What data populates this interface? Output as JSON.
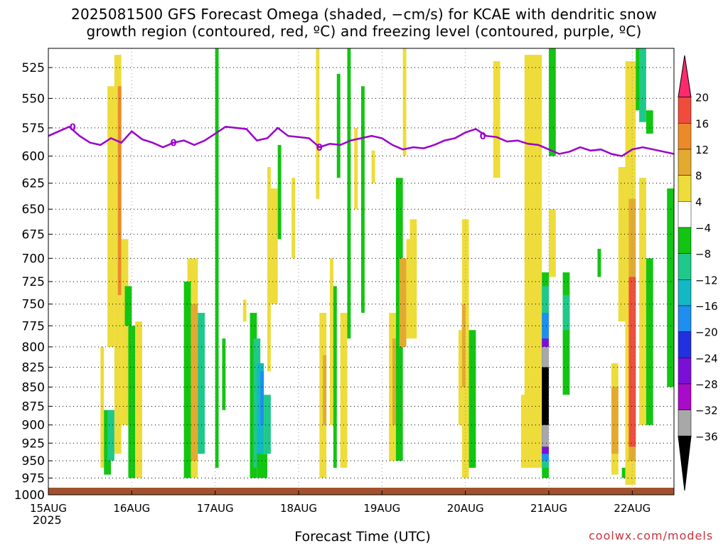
{
  "title": {
    "line1": "2025081500 GFS Forecast Omega (shaded, −cm/s) for KCAE with dendritic snow",
    "line2": "growth region (contoured, red, ºC) and freezing level (contoured, purple, ºC)"
  },
  "credit": "coolwx.com/models",
  "colors": {
    "freezing_line": "#9b00cc",
    "ground": "#a0522d",
    "grid": "#000000"
  },
  "chart_data": {
    "type": "heatmap",
    "xlabel": "Forecast Time (UTC)",
    "ylabel": "",
    "x_start_label": "15AUG",
    "x_start_year": "2025",
    "x_tick_labels": [
      "15AUG",
      "16AUG",
      "17AUG",
      "18AUG",
      "19AUG",
      "20AUG",
      "21AUG",
      "22AUG"
    ],
    "x_range_hours": [
      0,
      180
    ],
    "y_axis": "pressure (hPa), decreasing upward",
    "y_tick_labels": [
      "525",
      "550",
      "575",
      "600",
      "625",
      "650",
      "675",
      "700",
      "725",
      "750",
      "775",
      "800",
      "825",
      "850",
      "875",
      "900",
      "925",
      "950",
      "975",
      "1000"
    ],
    "y_range_hpa": [
      1000,
      510
    ],
    "colorbar": {
      "tick_labels": [
        "20",
        "16",
        "12",
        "8",
        "4",
        "−4",
        "−8",
        "−12",
        "−16",
        "−20",
        "−24",
        "−28",
        "−32",
        "−36"
      ],
      "levels": [
        24,
        20,
        16,
        12,
        8,
        4,
        -4,
        -8,
        -12,
        -16,
        -20,
        -24,
        -28,
        -32,
        -36,
        -40
      ],
      "colors": [
        "#ff2a6e",
        "#f04c3c",
        "#ec8a2a",
        "#e3aa30",
        "#eedc3a",
        "#ffffff",
        "#12c512",
        "#1ec98a",
        "#12b8c4",
        "#1e8ef0",
        "#2230e0",
        "#7a10d8",
        "#a80cc8",
        "#a8a8a8",
        "#000000"
      ]
    },
    "freezing_level_label": "0",
    "freezing_level_label_hours": [
      7,
      36,
      78,
      125
    ],
    "freezing_level": [
      {
        "h": 0,
        "p": 582
      },
      {
        "h": 3,
        "p": 578
      },
      {
        "h": 6,
        "p": 574
      },
      {
        "h": 9,
        "p": 582
      },
      {
        "h": 12,
        "p": 588
      },
      {
        "h": 15,
        "p": 590
      },
      {
        "h": 18,
        "p": 584
      },
      {
        "h": 21,
        "p": 588
      },
      {
        "h": 24,
        "p": 578
      },
      {
        "h": 27,
        "p": 585
      },
      {
        "h": 30,
        "p": 588
      },
      {
        "h": 33,
        "p": 592
      },
      {
        "h": 36,
        "p": 588
      },
      {
        "h": 39,
        "p": 586
      },
      {
        "h": 42,
        "p": 590
      },
      {
        "h": 45,
        "p": 586
      },
      {
        "h": 48,
        "p": 580
      },
      {
        "h": 51,
        "p": 574
      },
      {
        "h": 54,
        "p": 575
      },
      {
        "h": 57,
        "p": 576
      },
      {
        "h": 60,
        "p": 586
      },
      {
        "h": 63,
        "p": 584
      },
      {
        "h": 66,
        "p": 575
      },
      {
        "h": 69,
        "p": 582
      },
      {
        "h": 72,
        "p": 583
      },
      {
        "h": 75,
        "p": 584
      },
      {
        "h": 78,
        "p": 592
      },
      {
        "h": 81,
        "p": 589
      },
      {
        "h": 84,
        "p": 590
      },
      {
        "h": 87,
        "p": 586
      },
      {
        "h": 90,
        "p": 584
      },
      {
        "h": 93,
        "p": 582
      },
      {
        "h": 96,
        "p": 584
      },
      {
        "h": 99,
        "p": 590
      },
      {
        "h": 102,
        "p": 594
      },
      {
        "h": 105,
        "p": 592
      },
      {
        "h": 108,
        "p": 593
      },
      {
        "h": 111,
        "p": 590
      },
      {
        "h": 114,
        "p": 586
      },
      {
        "h": 117,
        "p": 584
      },
      {
        "h": 120,
        "p": 579
      },
      {
        "h": 123,
        "p": 576
      },
      {
        "h": 126,
        "p": 582
      },
      {
        "h": 129,
        "p": 583
      },
      {
        "h": 132,
        "p": 587
      },
      {
        "h": 135,
        "p": 586
      },
      {
        "h": 138,
        "p": 589
      },
      {
        "h": 141,
        "p": 590
      },
      {
        "h": 144,
        "p": 594
      },
      {
        "h": 147,
        "p": 598
      },
      {
        "h": 150,
        "p": 596
      },
      {
        "h": 153,
        "p": 592
      },
      {
        "h": 156,
        "p": 595
      },
      {
        "h": 159,
        "p": 594
      },
      {
        "h": 162,
        "p": 598
      },
      {
        "h": 165,
        "p": 600
      },
      {
        "h": 168,
        "p": 594
      },
      {
        "h": 171,
        "p": 592
      },
      {
        "h": 174,
        "p": 594
      },
      {
        "h": 177,
        "p": 596
      },
      {
        "h": 180,
        "p": 598
      }
    ],
    "omega_cells": [
      {
        "h0": 17,
        "h1": 19,
        "p0": 540,
        "p1": 800,
        "v": 6
      },
      {
        "h0": 19,
        "h1": 21,
        "p0": 515,
        "p1": 940,
        "v": 8
      },
      {
        "h0": 20,
        "h1": 21,
        "p0": 540,
        "p1": 740,
        "v": 13
      },
      {
        "h0": 21,
        "h1": 23,
        "p0": 680,
        "p1": 900,
        "v": 6
      },
      {
        "h0": 22,
        "h1": 24,
        "p0": 730,
        "p1": 775,
        "v": -6
      },
      {
        "h0": 23,
        "h1": 25,
        "p0": 775,
        "p1": 975,
        "v": -6
      },
      {
        "h0": 25,
        "h1": 27,
        "p0": 770,
        "p1": 975,
        "v": 6
      },
      {
        "h0": 15,
        "h1": 16,
        "p0": 800,
        "p1": 960,
        "v": 6
      },
      {
        "h0": 16,
        "h1": 18,
        "p0": 880,
        "p1": 970,
        "v": -7
      },
      {
        "h0": 17,
        "h1": 19,
        "p0": 880,
        "p1": 950,
        "v": -10
      },
      {
        "h0": 40,
        "h1": 43,
        "p0": 700,
        "p1": 975,
        "v": 6
      },
      {
        "h0": 41,
        "h1": 43,
        "p0": 750,
        "p1": 950,
        "v": 9
      },
      {
        "h0": 39,
        "h1": 41,
        "p0": 725,
        "p1": 975,
        "v": -6
      },
      {
        "h0": 43,
        "h1": 45,
        "p0": 760,
        "p1": 940,
        "v": -10
      },
      {
        "h0": 48,
        "h1": 49,
        "p0": 510,
        "p1": 960,
        "v": -6
      },
      {
        "h0": 50,
        "h1": 51,
        "p0": 790,
        "p1": 880,
        "v": -6
      },
      {
        "h0": 56,
        "h1": 57,
        "p0": 745,
        "p1": 770,
        "v": 6
      },
      {
        "h0": 58,
        "h1": 60,
        "p0": 760,
        "p1": 975,
        "v": -6
      },
      {
        "h0": 59,
        "h1": 61,
        "p0": 790,
        "p1": 960,
        "v": -10
      },
      {
        "h0": 60,
        "h1": 62,
        "p0": 820,
        "p1": 940,
        "v": -14
      },
      {
        "h0": 61,
        "h1": 62,
        "p0": 830,
        "p1": 900,
        "v": -18
      },
      {
        "h0": 60,
        "h1": 63,
        "p0": 940,
        "p1": 975,
        "v": -6
      },
      {
        "h0": 62,
        "h1": 64,
        "p0": 860,
        "p1": 940,
        "v": -10
      },
      {
        "h0": 63,
        "h1": 64,
        "p0": 610,
        "p1": 830,
        "v": 6
      },
      {
        "h0": 64,
        "h1": 66,
        "p0": 630,
        "p1": 750,
        "v": 6
      },
      {
        "h0": 66,
        "h1": 67,
        "p0": 590,
        "p1": 680,
        "v": -6
      },
      {
        "h0": 70,
        "h1": 71,
        "p0": 620,
        "p1": 700,
        "v": 6
      },
      {
        "h0": 77,
        "h1": 78,
        "p0": 510,
        "p1": 640,
        "v": 6
      },
      {
        "h0": 78,
        "h1": 80,
        "p0": 760,
        "p1": 975,
        "v": 6
      },
      {
        "h0": 79,
        "h1": 80,
        "p0": 810,
        "p1": 900,
        "v": 10
      },
      {
        "h0": 81,
        "h1": 82,
        "p0": 700,
        "p1": 900,
        "v": 6
      },
      {
        "h0": 82,
        "h1": 83,
        "p0": 730,
        "p1": 960,
        "v": -6
      },
      {
        "h0": 83,
        "h1": 84,
        "p0": 530,
        "p1": 620,
        "v": -6
      },
      {
        "h0": 84,
        "h1": 86,
        "p0": 760,
        "p1": 960,
        "v": 6
      },
      {
        "h0": 86,
        "h1": 87,
        "p0": 510,
        "p1": 790,
        "v": -6
      },
      {
        "h0": 88,
        "h1": 89,
        "p0": 575,
        "p1": 650,
        "v": 6
      },
      {
        "h0": 90,
        "h1": 91,
        "p0": 540,
        "p1": 760,
        "v": -6
      },
      {
        "h0": 93,
        "h1": 94,
        "p0": 595,
        "p1": 625,
        "v": 6
      },
      {
        "h0": 98,
        "h1": 100,
        "p0": 760,
        "p1": 950,
        "v": 6
      },
      {
        "h0": 99,
        "h1": 100,
        "p0": 790,
        "p1": 900,
        "v": 10
      },
      {
        "h0": 100,
        "h1": 102,
        "p0": 620,
        "p1": 950,
        "v": -6
      },
      {
        "h0": 101,
        "h1": 103,
        "p0": 700,
        "p1": 800,
        "v": 9
      },
      {
        "h0": 103,
        "h1": 106,
        "p0": 680,
        "p1": 790,
        "v": 6
      },
      {
        "h0": 104,
        "h1": 106,
        "p0": 660,
        "p1": 740,
        "v": 6
      },
      {
        "h0": 102,
        "h1": 103,
        "p0": 510,
        "p1": 600,
        "v": 6
      },
      {
        "h0": 119,
        "h1": 121,
        "p0": 660,
        "p1": 975,
        "v": 6
      },
      {
        "h0": 119,
        "h1": 120,
        "p0": 750,
        "p1": 850,
        "v": 10
      },
      {
        "h0": 121,
        "h1": 123,
        "p0": 780,
        "p1": 960,
        "v": -6
      },
      {
        "h0": 118,
        "h1": 119,
        "p0": 780,
        "p1": 900,
        "v": 6
      },
      {
        "h0": 128,
        "h1": 130,
        "p0": 520,
        "p1": 620,
        "v": 6
      },
      {
        "h0": 137,
        "h1": 142,
        "p0": 515,
        "p1": 960,
        "v": 6
      },
      {
        "h0": 136,
        "h1": 139,
        "p0": 860,
        "p1": 960,
        "v": 6
      },
      {
        "h0": 142,
        "h1": 144,
        "p0": 715,
        "p1": 975,
        "v": -6
      },
      {
        "h0": 142,
        "h1": 144,
        "p0": 730,
        "p1": 960,
        "v": -10
      },
      {
        "h0": 142,
        "h1": 144,
        "p0": 760,
        "p1": 950,
        "v": -16
      },
      {
        "h0": 142,
        "h1": 144,
        "p0": 790,
        "p1": 940,
        "v": -26
      },
      {
        "h0": 142,
        "h1": 144,
        "p0": 800,
        "p1": 930,
        "v": -34
      },
      {
        "h0": 142,
        "h1": 144,
        "p0": 825,
        "p1": 900,
        "v": -38
      },
      {
        "h0": 144,
        "h1": 146,
        "p0": 510,
        "p1": 600,
        "v": -6
      },
      {
        "h0": 144,
        "h1": 146,
        "p0": 650,
        "p1": 720,
        "v": 6
      },
      {
        "h0": 148,
        "h1": 150,
        "p0": 715,
        "p1": 860,
        "v": -6
      },
      {
        "h0": 148,
        "h1": 150,
        "p0": 740,
        "p1": 780,
        "v": -10
      },
      {
        "h0": 158,
        "h1": 159,
        "p0": 690,
        "p1": 720,
        "v": -6
      },
      {
        "h0": 162,
        "h1": 164,
        "p0": 820,
        "p1": 970,
        "v": 6
      },
      {
        "h0": 162,
        "h1": 164,
        "p0": 850,
        "p1": 940,
        "v": 10
      },
      {
        "h0": 165,
        "h1": 166,
        "p0": 960,
        "p1": 975,
        "v": -6
      },
      {
        "h0": 164,
        "h1": 166,
        "p0": 610,
        "p1": 770,
        "v": 6
      },
      {
        "h0": 166,
        "h1": 169,
        "p0": 520,
        "p1": 985,
        "v": 8
      },
      {
        "h0": 167,
        "h1": 169,
        "p0": 640,
        "p1": 950,
        "v": 12
      },
      {
        "h0": 167,
        "h1": 169,
        "p0": 720,
        "p1": 930,
        "v": 20
      },
      {
        "h0": 169,
        "h1": 171,
        "p0": 510,
        "p1": 560,
        "v": -6
      },
      {
        "h0": 170,
        "h1": 172,
        "p0": 510,
        "p1": 570,
        "v": -10
      },
      {
        "h0": 172,
        "h1": 174,
        "p0": 560,
        "p1": 580,
        "v": -6
      },
      {
        "h0": 170,
        "h1": 172,
        "p0": 620,
        "p1": 900,
        "v": 6
      },
      {
        "h0": 172,
        "h1": 174,
        "p0": 700,
        "p1": 900,
        "v": -6
      },
      {
        "h0": 178,
        "h1": 180,
        "p0": 630,
        "p1": 850,
        "v": -6
      }
    ]
  }
}
